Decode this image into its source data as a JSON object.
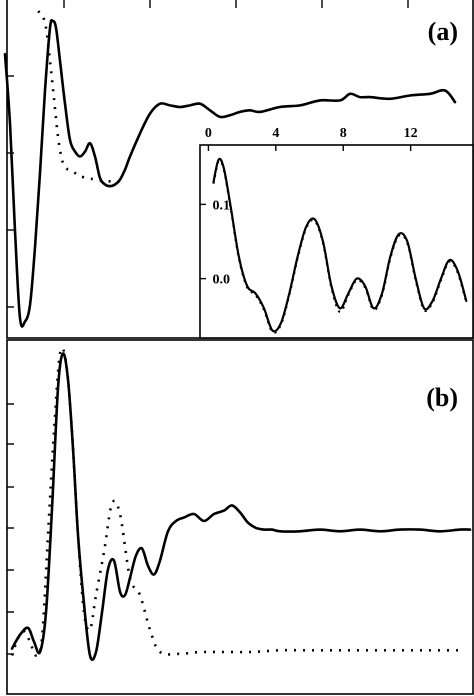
{
  "figure": {
    "panel_a_label": "(a)",
    "panel_b_label": "(b)"
  },
  "chart_data": [
    {
      "type": "line",
      "panel": "(a)",
      "title": "",
      "xlabel": "",
      "ylabel": "",
      "axis_ticks_labeled": false,
      "xlim": [
        0,
        470
      ],
      "ylim": [
        -100,
        100
      ],
      "series": [
        {
          "style": "solid",
          "x": [
            5,
            10,
            15,
            20,
            25,
            30,
            35,
            40,
            45,
            50,
            53,
            56,
            60,
            65,
            70,
            75,
            80,
            85,
            90,
            95,
            100,
            105,
            110,
            115,
            120,
            125,
            130,
            140,
            150,
            160,
            170,
            180,
            190,
            200,
            210,
            220,
            230,
            240,
            250,
            260,
            280,
            300,
            320,
            340,
            350,
            360,
            370,
            390,
            410,
            430,
            445,
            455
          ],
          "y": [
            72,
            30,
            -35,
            -88,
            -90,
            -80,
            -45,
            0,
            50,
            88,
            92,
            88,
            68,
            42,
            20,
            13,
            10,
            13,
            18,
            10,
            -3,
            -7,
            -8,
            -7,
            -4,
            2,
            10,
            24,
            36,
            42,
            41,
            40,
            41,
            42,
            38,
            34,
            35,
            37,
            38,
            37,
            40,
            41,
            44,
            44,
            48,
            46,
            46,
            45,
            47,
            48,
            50,
            43
          ]
        },
        {
          "style": "dotted",
          "x": [
            38,
            42,
            46,
            50,
            54,
            58,
            62,
            66,
            70,
            75,
            80,
            88,
            95,
            105,
            115,
            125
          ],
          "y": [
            98,
            96,
            88,
            68,
            45,
            22,
            8,
            3,
            2,
            0,
            -2,
            -3,
            -4,
            -5,
            -5,
            -6
          ]
        }
      ]
    },
    {
      "type": "line",
      "panel": "(a) inset",
      "title": "",
      "xlabel": "",
      "ylabel": "",
      "xlim": [
        -0.5,
        15.7
      ],
      "ylim": [
        -0.08,
        0.18
      ],
      "xticks": [
        "0",
        "4",
        "8",
        "12"
      ],
      "yticks": [
        "0.1",
        "0.0"
      ],
      "series": [
        {
          "style": "solid",
          "x": [
            0.3,
            0.6,
            0.9,
            1.3,
            1.8,
            2.3,
            2.8,
            3.3,
            3.8,
            4.3,
            4.8,
            5.3,
            5.8,
            6.3,
            6.8,
            7.3,
            7.8,
            8.3,
            8.8,
            9.3,
            9.8,
            10.3,
            10.8,
            11.3,
            11.8,
            12.3,
            12.8,
            13.3,
            13.8,
            14.3,
            14.8,
            15.3
          ],
          "y": [
            0.13,
            0.16,
            0.15,
            0.1,
            0.03,
            -0.01,
            -0.02,
            -0.04,
            -0.07,
            -0.06,
            -0.02,
            0.03,
            0.07,
            0.08,
            0.05,
            -0.01,
            -0.04,
            -0.02,
            0.0,
            -0.01,
            -0.04,
            -0.02,
            0.03,
            0.06,
            0.05,
            0.0,
            -0.04,
            -0.03,
            0.0,
            0.025,
            0.01,
            -0.03
          ]
        },
        {
          "style": "dotted",
          "x": [
            0.3,
            0.6,
            0.9,
            1.3,
            1.8,
            2.3,
            2.8,
            3.3,
            3.8,
            4.3,
            4.8,
            5.3,
            5.8,
            6.3,
            6.8,
            7.3,
            7.8,
            8.3,
            8.8,
            9.3,
            9.8,
            10.3,
            10.8,
            11.3,
            11.8,
            12.3,
            12.8,
            13.3,
            13.8,
            14.3,
            14.8,
            15.3
          ],
          "y": [
            0.128,
            0.158,
            0.148,
            0.098,
            0.028,
            -0.012,
            -0.022,
            -0.042,
            -0.072,
            -0.062,
            -0.022,
            0.028,
            0.068,
            0.078,
            0.048,
            -0.012,
            -0.045,
            -0.022,
            -0.002,
            -0.012,
            -0.042,
            -0.022,
            0.028,
            0.058,
            0.048,
            -0.002,
            -0.042,
            -0.032,
            -0.002,
            0.023,
            0.008,
            -0.032
          ]
        }
      ]
    },
    {
      "type": "line",
      "panel": "(b)",
      "title": "",
      "xlabel": "",
      "ylabel": "",
      "axis_ticks_labeled": false,
      "xlim": [
        0,
        470
      ],
      "ylim": [
        -100,
        100
      ],
      "series": [
        {
          "style": "solid",
          "x": [
            12,
            20,
            28,
            34,
            40,
            46,
            52,
            58,
            63,
            68,
            73,
            78,
            84,
            90,
            96,
            102,
            108,
            114,
            120,
            125,
            130,
            136,
            142,
            148,
            154,
            160,
            168,
            176,
            184,
            194,
            204,
            214,
            224,
            232,
            240,
            248,
            256,
            264,
            272,
            280,
            300,
            320,
            340,
            360,
            380,
            400,
            420,
            440,
            460,
            470
          ],
          "y": [
            -76,
            -68,
            -64,
            -72,
            -78,
            -55,
            5,
            75,
            95,
            80,
            40,
            -10,
            -50,
            -80,
            -78,
            -55,
            -30,
            -25,
            -43,
            -45,
            -35,
            -22,
            -18,
            -28,
            -33,
            -25,
            -8,
            -2,
            0,
            2,
            -2,
            2,
            4,
            7,
            3,
            -3,
            -6,
            -7,
            -7,
            -8,
            -8,
            -7,
            -8,
            -7,
            -8,
            -7,
            -7,
            -8,
            -7,
            -7
          ]
        },
        {
          "style": "dotted",
          "x": [
            12,
            18,
            24,
            30,
            36,
            42,
            48,
            54,
            60,
            66,
            72,
            78,
            84,
            90,
            96,
            104,
            112,
            120,
            130,
            140,
            150,
            160,
            180,
            200,
            220,
            250,
            280,
            310,
            340,
            370,
            400,
            430,
            460
          ],
          "y": [
            -80,
            -70,
            -66,
            -72,
            -80,
            -70,
            -10,
            50,
            95,
            90,
            50,
            -10,
            -55,
            -65,
            -45,
            -20,
            8,
            2,
            -35,
            -45,
            -65,
            -78,
            -79,
            -78,
            -78,
            -78,
            -77,
            -77,
            -77,
            -77,
            -77,
            -77,
            -77
          ]
        }
      ]
    }
  ]
}
